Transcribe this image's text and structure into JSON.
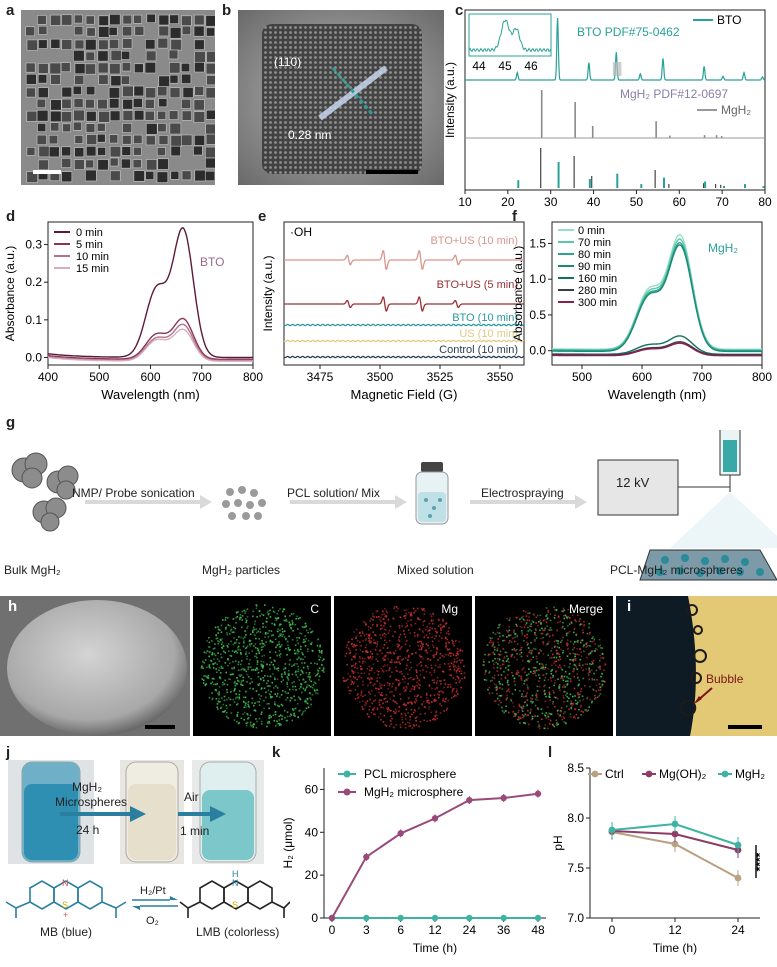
{
  "labels": {
    "a": "a",
    "b": "b",
    "c": "c",
    "d": "d",
    "e": "e",
    "f": "f",
    "g": "g",
    "h": "h",
    "i": "i",
    "j": "j",
    "k": "k",
    "l": "l"
  },
  "panel_b": {
    "plane": "(110)",
    "spacing": "0.28 nm"
  },
  "panel_g": {
    "step1": "NMP/ Probe sonication",
    "step2": "PCL solution/ Mix",
    "step3": "Electrospraying",
    "voltage": "12 kV",
    "item1": "Bulk MgH₂",
    "item2": "MgH₂ particles",
    "item3": "Mixed solution",
    "item4": "PCL-MgH₂ microspheres"
  },
  "panel_h": {
    "c": "C",
    "mg": "Mg",
    "merge": "Merge",
    "colors": {
      "c": "#1f6e2a",
      "mg": "#7a1616"
    }
  },
  "panel_i": {
    "bubble": "Bubble"
  },
  "panel_j": {
    "step1_a": "MgH₂",
    "step1_b": "Microspheres",
    "step1_c": "24 h",
    "step2_a": "Air",
    "step2_b": "1 min",
    "reagent_top": "H₂/Pt",
    "reagent_bottom": "O₂",
    "mb": "MB (blue)",
    "lmb": "LMB (colorless)",
    "atoms": {
      "n": "N",
      "s": "S",
      "h": "H",
      "plus": "+"
    }
  },
  "chart_data": [
    {
      "id": "c",
      "type": "line",
      "title": "",
      "xlabel": "2θ (degree)",
      "ylabel": "Intensity (a.u.)",
      "xlim": [
        10,
        80
      ],
      "xticks": [
        10,
        20,
        30,
        40,
        50,
        60,
        70,
        80
      ],
      "legend": [
        "BTO",
        "MgH₂"
      ],
      "annotations": [
        "BTO PDF#75-0462",
        "MgH₂ PDF#12-0697"
      ],
      "inset": {
        "xticks": [
          44,
          45,
          46
        ]
      },
      "series": [
        {
          "name": "BTO",
          "color": "#2aa198",
          "peaks": [
            {
              "x": 22.2,
              "h": 0.12
            },
            {
              "x": 31.6,
              "h": 1.0
            },
            {
              "x": 38.9,
              "h": 0.28
            },
            {
              "x": 45.3,
              "h": 0.45
            },
            {
              "x": 50.9,
              "h": 0.1
            },
            {
              "x": 56.2,
              "h": 0.35
            },
            {
              "x": 65.8,
              "h": 0.22
            },
            {
              "x": 70.2,
              "h": 0.06
            },
            {
              "x": 75.1,
              "h": 0.12
            },
            {
              "x": 79.4,
              "h": 0.05
            }
          ]
        },
        {
          "name": "MgH₂",
          "color": "#8a8a8a",
          "peaks": [
            {
              "x": 27.9,
              "h": 1.0
            },
            {
              "x": 35.7,
              "h": 0.75
            },
            {
              "x": 39.8,
              "h": 0.25
            },
            {
              "x": 54.6,
              "h": 0.35
            },
            {
              "x": 57.8,
              "h": 0.05
            },
            {
              "x": 65.9,
              "h": 0.06
            },
            {
              "x": 68.7,
              "h": 0.06
            },
            {
              "x": 69.9,
              "h": 0.04
            }
          ]
        },
        {
          "name": "BTO PDF#75-0462",
          "color": "#2aa198",
          "peaks": [
            {
              "x": 22.2,
              "h": 0.3
            },
            {
              "x": 31.6,
              "h": 1.0
            },
            {
              "x": 38.9,
              "h": 0.35
            },
            {
              "x": 45.3,
              "h": 0.55
            },
            {
              "x": 50.9,
              "h": 0.15
            },
            {
              "x": 56.2,
              "h": 0.4
            },
            {
              "x": 65.8,
              "h": 0.25
            },
            {
              "x": 70.2,
              "h": 0.08
            },
            {
              "x": 75.1,
              "h": 0.15
            },
            {
              "x": 79.4,
              "h": 0.07
            }
          ]
        },
        {
          "name": "MgH₂ PDF#12-0697",
          "color": "#444444",
          "peaks": [
            {
              "x": 27.9,
              "h": 1.0
            },
            {
              "x": 35.7,
              "h": 0.8
            },
            {
              "x": 39.8,
              "h": 0.3
            },
            {
              "x": 54.6,
              "h": 0.45
            },
            {
              "x": 57.8,
              "h": 0.1
            },
            {
              "x": 65.9,
              "h": 0.12
            },
            {
              "x": 68.7,
              "h": 0.1
            },
            {
              "x": 69.9,
              "h": 0.08
            }
          ]
        }
      ]
    },
    {
      "id": "d",
      "type": "line",
      "title": "BTO",
      "xlabel": "Wavelength (nm)",
      "ylabel": "Absorbance (a.u.)",
      "xlim": [
        400,
        800
      ],
      "ylim": [
        -0.02,
        0.36
      ],
      "xticks": [
        400,
        500,
        600,
        700,
        800
      ],
      "yticks": [
        0.0,
        0.1,
        0.2,
        0.3
      ],
      "legend_position": "top-left",
      "series": [
        {
          "name": "0 min",
          "color": "#5b1a3a",
          "peak": 0.335,
          "shoulder": 0.18,
          "base": 0.0
        },
        {
          "name": "5 min",
          "color": "#8a3556",
          "peak": 0.1,
          "shoulder": 0.06,
          "base": -0.005
        },
        {
          "name": "10 min",
          "color": "#b27490",
          "peak": 0.085,
          "shoulder": 0.05,
          "base": -0.008
        },
        {
          "name": "15 min",
          "color": "#d6aebf",
          "peak": 0.072,
          "shoulder": 0.045,
          "base": -0.01
        }
      ]
    },
    {
      "id": "e",
      "type": "line",
      "title": "·OH",
      "xlabel": "Magnetic Field (G)",
      "ylabel": "Intensity (a.u.)",
      "xlim": [
        3460,
        3560
      ],
      "xticks": [
        3475,
        3500,
        3525,
        3550
      ],
      "series": [
        {
          "name": "BTO+US (10 min)",
          "color": "#d9958c",
          "amp": 1.0
        },
        {
          "name": "BTO+US (5 min)",
          "color": "#9b2f36",
          "amp": 0.75
        },
        {
          "name": "BTO (10 min)",
          "color": "#2a9aa0",
          "amp": 0.0
        },
        {
          "name": "US (10 min)",
          "color": "#e2c984",
          "amp": 0.0
        },
        {
          "name": "Control (10 min)",
          "color": "#2b3f55",
          "amp": 0.0
        }
      ],
      "hyperfine_lines_G": [
        3487,
        3502,
        3517,
        3532
      ]
    },
    {
      "id": "f",
      "type": "line",
      "title": "MgH₂",
      "xlabel": "Wavelength (nm)",
      "ylabel": "Absorbance (a.u.)",
      "xlim": [
        450,
        800
      ],
      "ylim": [
        -0.2,
        1.8
      ],
      "xticks": [
        500,
        600,
        700,
        800
      ],
      "yticks": [
        0.0,
        0.5,
        1.0,
        1.5
      ],
      "legend_position": "top-left",
      "series": [
        {
          "name": "0 min",
          "color": "#9bdcc8",
          "peak": 1.58,
          "base": 0.02
        },
        {
          "name": "70 min",
          "color": "#5cc6ac",
          "peak": 1.52,
          "base": 0.01
        },
        {
          "name": "80 min",
          "color": "#2aa88f",
          "peak": 1.47,
          "base": 0.0
        },
        {
          "name": "90 min",
          "color": "#1c8a77",
          "peak": 1.44,
          "base": -0.01
        },
        {
          "name": "160 min",
          "color": "#137060",
          "peak": 0.2,
          "base": -0.05
        },
        {
          "name": "280 min",
          "color": "#3b3b4a",
          "peak": 0.12,
          "base": -0.06
        },
        {
          "name": "300 min",
          "color": "#8a1f4f",
          "peak": 0.1,
          "base": -0.07
        }
      ]
    },
    {
      "id": "k",
      "type": "line",
      "xlabel": "Time (h)",
      "ylabel": "H₂ (μmol)",
      "categories": [
        "0",
        "3",
        "6",
        "12",
        "24",
        "36",
        "48"
      ],
      "ylim": [
        0,
        70
      ],
      "yticks": [
        0,
        20,
        40,
        60
      ],
      "legend_position": "top-left",
      "series": [
        {
          "name": "PCL microsphere",
          "color": "#3fb3a3",
          "values": [
            0,
            0,
            0,
            0,
            0,
            0,
            0
          ]
        },
        {
          "name": "MgH₂ microsphere",
          "color": "#9a4a7a",
          "values": [
            0,
            28.5,
            39.5,
            46.5,
            55,
            56,
            58
          ]
        }
      ]
    },
    {
      "id": "l",
      "type": "line",
      "xlabel": "Time (h)",
      "ylabel": "pH",
      "x": [
        0,
        12,
        24
      ],
      "xticks": [
        0,
        12,
        24
      ],
      "ylim": [
        7.0,
        8.5
      ],
      "yticks": [
        7.0,
        7.5,
        8.0,
        8.5
      ],
      "legend_position": "top",
      "significance": "****",
      "series": [
        {
          "name": "Ctrl",
          "color": "#b8a184",
          "values": [
            7.86,
            7.74,
            7.4
          ]
        },
        {
          "name": "Mg(OH)₂",
          "color": "#8e3b66",
          "values": [
            7.87,
            7.84,
            7.68
          ]
        },
        {
          "name": "MgH₂",
          "color": "#3fb3a3",
          "values": [
            7.88,
            7.94,
            7.73
          ]
        }
      ]
    }
  ]
}
